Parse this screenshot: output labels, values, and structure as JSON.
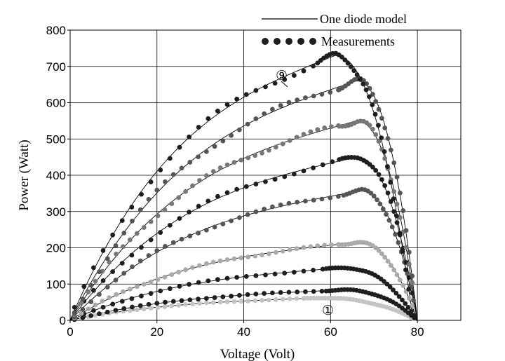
{
  "chart_data": {
    "type": "scatter",
    "title": "",
    "xlabel": "Voltage (Volt)",
    "ylabel": "Power (Watt)",
    "xlim": [
      0,
      90
    ],
    "ylim": [
      0,
      800
    ],
    "x_ticks": [
      "0",
      "20",
      "40",
      "60",
      "80"
    ],
    "y_ticks": [
      "0",
      "100",
      "200",
      "300",
      "400",
      "500",
      "600",
      "700",
      "800"
    ],
    "grid": true,
    "legend_position": "top-right",
    "legend": [
      {
        "label": "One diode model",
        "style": "line"
      },
      {
        "label": "Measurements",
        "style": "dots"
      }
    ],
    "annotations": [
      {
        "text": "⑨",
        "x": 49,
        "y": 700
      },
      {
        "text": "①",
        "x": 60,
        "y": 30
      }
    ],
    "voc": 80,
    "series": [
      {
        "vmp": 58,
        "pmax": 62,
        "color": "#c4c4c4",
        "voc": 80
      },
      {
        "vmp": 63,
        "pmax": 84,
        "color": "#1e1e1e",
        "voc": 80
      },
      {
        "vmp": 63,
        "pmax": 145,
        "color": "#1e1e1e",
        "voc": 80
      },
      {
        "vmp": 66,
        "pmax": 215,
        "color": "#aaaaaa",
        "voc": 80
      },
      {
        "vmp": 67,
        "pmax": 357,
        "color": "#555555",
        "voc": 80
      },
      {
        "vmp": 66,
        "pmax": 450,
        "color": "#1e1e1e",
        "voc": 80
      },
      {
        "vmp": 66,
        "pmax": 550,
        "color": "#777777",
        "voc": 80
      },
      {
        "vmp": 66,
        "pmax": 660,
        "color": "#555555",
        "voc": 80
      },
      {
        "vmp": 61,
        "pmax": 730,
        "color": "#1e1e1e",
        "voc": 79
      }
    ]
  }
}
